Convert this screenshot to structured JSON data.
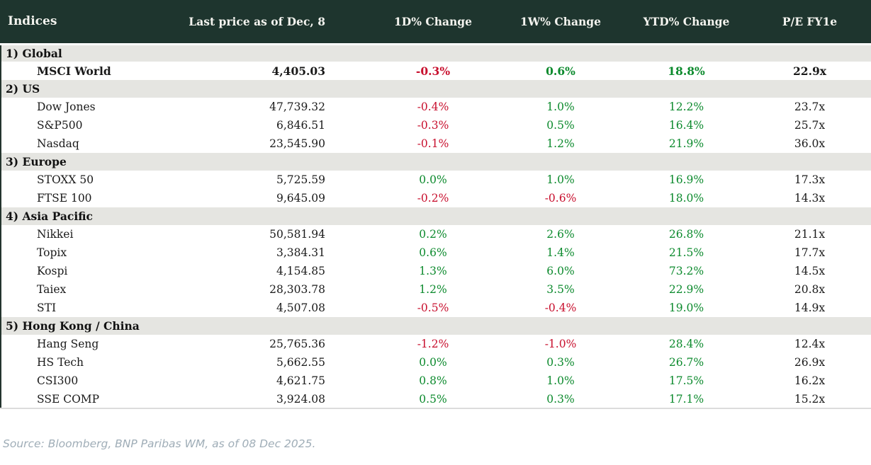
{
  "colors": {
    "header_bg": "#1e352e",
    "header_text": "#f4f4ef",
    "section_bg": "#e5e5e1",
    "row_bg": "#ffffff",
    "positive": "#0c8a2d",
    "negative": "#c8102e",
    "text": "#1a1a1a",
    "source_text": "#9fadb7"
  },
  "table": {
    "columns": [
      "Indices",
      "Last price as of Dec, 8",
      "1D% Change",
      "1W% Change",
      "YTD% Change",
      "P/E FY1e"
    ],
    "sections": [
      {
        "label": "1) Global",
        "rows": [
          {
            "name": "MSCI World",
            "price": "4,405.03",
            "d1": "-0.3%",
            "w1": "0.6%",
            "ytd": "18.8%",
            "pe": "22.9x",
            "bold": true
          }
        ]
      },
      {
        "label": "2) US",
        "rows": [
          {
            "name": "Dow Jones",
            "price": "47,739.32",
            "d1": "-0.4%",
            "w1": "1.0%",
            "ytd": "12.2%",
            "pe": "23.7x"
          },
          {
            "name": "S&P500",
            "price": "6,846.51",
            "d1": "-0.3%",
            "w1": "0.5%",
            "ytd": "16.4%",
            "pe": "25.7x"
          },
          {
            "name": "Nasdaq",
            "price": "23,545.90",
            "d1": "-0.1%",
            "w1": "1.2%",
            "ytd": "21.9%",
            "pe": "36.0x"
          }
        ]
      },
      {
        "label": "3) Europe",
        "rows": [
          {
            "name": "STOXX 50",
            "price": "5,725.59",
            "d1": "0.0%",
            "w1": "1.0%",
            "ytd": "16.9%",
            "pe": "17.3x"
          },
          {
            "name": "FTSE 100",
            "price": "9,645.09",
            "d1": "-0.2%",
            "w1": "-0.6%",
            "ytd": "18.0%",
            "pe": "14.3x"
          }
        ]
      },
      {
        "label": "4) Asia Pacific",
        "rows": [
          {
            "name": "Nikkei",
            "price": "50,581.94",
            "d1": "0.2%",
            "w1": "2.6%",
            "ytd": "26.8%",
            "pe": "21.1x"
          },
          {
            "name": "Topix",
            "price": "3,384.31",
            "d1": "0.6%",
            "w1": "1.4%",
            "ytd": "21.5%",
            "pe": "17.7x"
          },
          {
            "name": "Kospi",
            "price": "4,154.85",
            "d1": "1.3%",
            "w1": "6.0%",
            "ytd": "73.2%",
            "pe": "14.5x"
          },
          {
            "name": "Taiex",
            "price": "28,303.78",
            "d1": "1.2%",
            "w1": "3.5%",
            "ytd": "22.9%",
            "pe": "20.8x"
          },
          {
            "name": "STI",
            "price": "4,507.08",
            "d1": "-0.5%",
            "w1": "-0.4%",
            "ytd": "19.0%",
            "pe": "14.9x"
          }
        ]
      },
      {
        "label": "5) Hong Kong / China",
        "rows": [
          {
            "name": "Hang Seng",
            "price": "25,765.36",
            "d1": "-1.2%",
            "w1": "-1.0%",
            "ytd": "28.4%",
            "pe": "12.4x"
          },
          {
            "name": "HS Tech",
            "price": "5,662.55",
            "d1": "0.0%",
            "w1": "0.3%",
            "ytd": "26.7%",
            "pe": "26.9x"
          },
          {
            "name": "CSI300",
            "price": "4,621.75",
            "d1": "0.8%",
            "w1": "1.0%",
            "ytd": "17.5%",
            "pe": "16.2x"
          },
          {
            "name": "SSE COMP",
            "price": "3,924.08",
            "d1": "0.5%",
            "w1": "0.3%",
            "ytd": "17.1%",
            "pe": "15.2x"
          }
        ]
      }
    ]
  },
  "footer": {
    "source": "Source: Bloomberg, BNP Paribas WM, as of 08 Dec 2025."
  }
}
